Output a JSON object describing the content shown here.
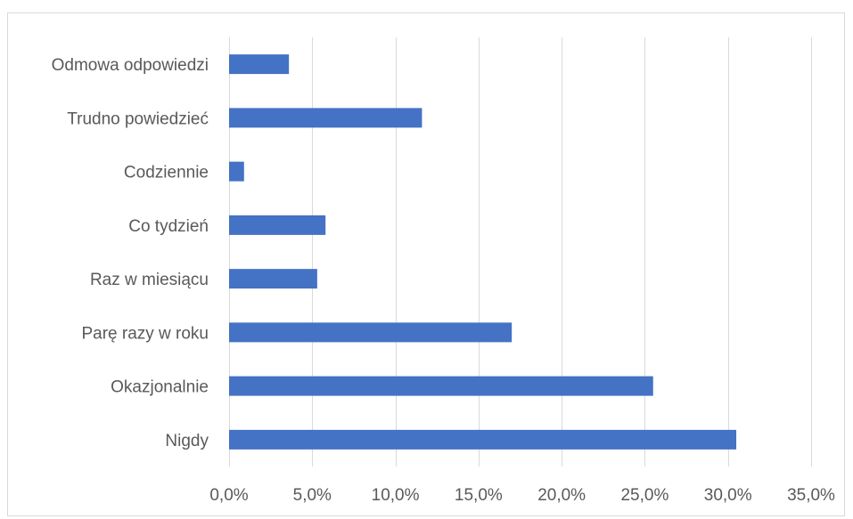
{
  "chart_data": {
    "type": "bar",
    "orientation": "horizontal",
    "categories": [
      "Odmowa odpowiedzi",
      "Trudno powiedzieć",
      "Codziennie",
      "Co tydzień",
      "Raz w miesiącu",
      "Parę razy w roku",
      "Okazjonalnie",
      "Nigdy"
    ],
    "values": [
      3.6,
      11.6,
      0.9,
      5.8,
      5.3,
      17.0,
      25.5,
      30.5
    ],
    "xlim": [
      0,
      35
    ],
    "x_ticks": [
      0,
      5,
      10,
      15,
      20,
      25,
      30,
      35
    ],
    "x_tick_labels": [
      "0,0%",
      "5,0%",
      "10,0%",
      "15,0%",
      "20,0%",
      "25,0%",
      "30,0%",
      "35,0%"
    ],
    "grid": "vertical",
    "legend": "none",
    "colors": {
      "bar": "#4472c4",
      "grid": "#d9d9d9",
      "text": "#595959"
    }
  }
}
